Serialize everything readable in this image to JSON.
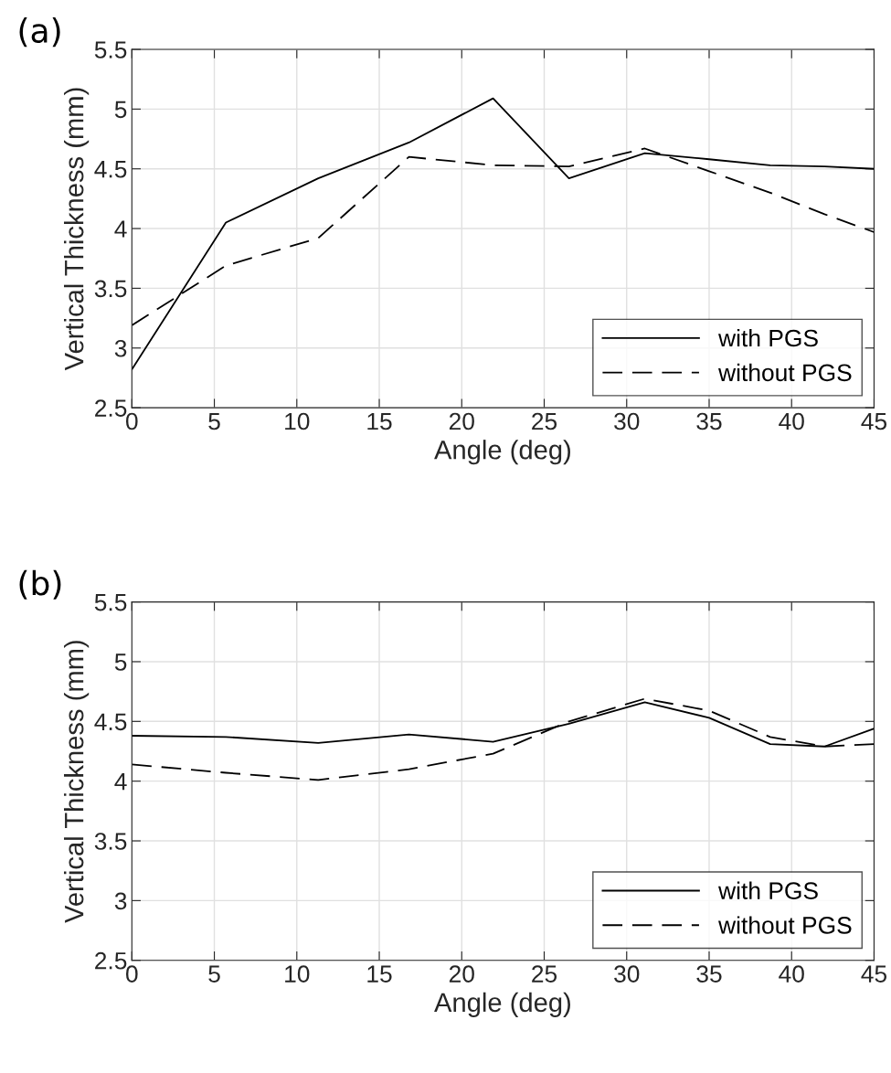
{
  "chart_data": [
    {
      "type": "line",
      "title": "(a)",
      "xlabel": "Angle (deg)",
      "ylabel": "Vertical Thickness (mm)",
      "x": [
        0,
        5.7,
        11.3,
        16.8,
        21.9,
        26.5,
        31.1,
        35,
        38.7,
        42,
        45
      ],
      "series": [
        {
          "name": "with PGS",
          "color": "#000000",
          "line_style": "solid",
          "values": [
            2.82,
            4.05,
            4.42,
            4.72,
            5.09,
            4.42,
            4.63,
            4.58,
            4.53,
            4.52,
            4.5
          ]
        },
        {
          "name": "without PGS",
          "color": "#000000",
          "line_style": "dashed",
          "values": [
            3.19,
            3.69,
            3.92,
            4.6,
            4.53,
            4.52,
            4.67,
            4.48,
            4.3,
            4.12,
            3.97
          ]
        }
      ],
      "xlim": [
        0,
        45
      ],
      "xticks": [
        0,
        5,
        10,
        15,
        20,
        25,
        30,
        35,
        40,
        45
      ],
      "ylim": [
        2.5,
        5.5
      ],
      "yticks": [
        2.5,
        3,
        3.5,
        4,
        4.5,
        5,
        5.5
      ],
      "grid": true,
      "legend": "bottom right"
    },
    {
      "type": "line",
      "title": "(b)",
      "xlabel": "Angle (deg)",
      "ylabel": "Vertical Thickness (mm)",
      "x": [
        0,
        5.7,
        11.3,
        16.8,
        21.9,
        26.5,
        31.1,
        35,
        38.7,
        42,
        45
      ],
      "series": [
        {
          "name": "with PGS",
          "color": "#000000",
          "line_style": "solid",
          "values": [
            4.38,
            4.37,
            4.32,
            4.39,
            4.33,
            4.48,
            4.66,
            4.53,
            4.31,
            4.29,
            4.44
          ]
        },
        {
          "name": "without PGS",
          "color": "#000000",
          "line_style": "dashed",
          "values": [
            4.14,
            4.07,
            4.01,
            4.1,
            4.23,
            4.5,
            4.69,
            4.59,
            4.37,
            4.29,
            4.31
          ]
        }
      ],
      "xlim": [
        0,
        45
      ],
      "xticks": [
        0,
        5,
        10,
        15,
        20,
        25,
        30,
        35,
        40,
        45
      ],
      "ylim": [
        2.5,
        5.5
      ],
      "yticks": [
        2.5,
        3,
        3.5,
        4,
        4.5,
        5,
        5.5
      ],
      "grid": true,
      "legend": "bottom right"
    }
  ]
}
